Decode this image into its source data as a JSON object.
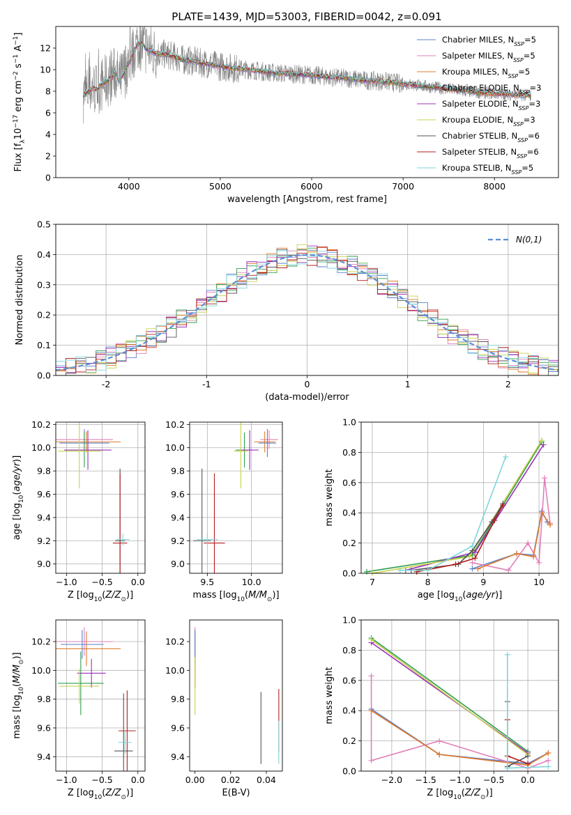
{
  "figure": {
    "title": "PLATE=1439, MJD=53003, FIBERID=0042, z=0.091"
  },
  "legend_entries": [
    {
      "key": "chabrier_miles",
      "prefix": "Chabrier MILES, N",
      "n": 5,
      "color": "#5b7fd1"
    },
    {
      "key": "salpeter_miles",
      "prefix": "Salpeter MILES, N",
      "n": 5,
      "color": "#e07fb8"
    },
    {
      "key": "kroupa_miles",
      "prefix": "Kroupa MILES, N",
      "n": 5,
      "color": "#e07a28"
    },
    {
      "key": "chabrier_elodie",
      "prefix": "Chabrier ELODIE, N",
      "n": 3,
      "color": "#2e9e4d"
    },
    {
      "key": "salpeter_elodie",
      "prefix": "Salpeter ELODIE, N",
      "n": 3,
      "color": "#9b2fb8"
    },
    {
      "key": "kroupa_elodie",
      "prefix": "Kroupa ELODIE, N",
      "n": 3,
      "color": "#c8d24a"
    },
    {
      "key": "chabrier_stelib",
      "prefix": "Chabrier STELIB, N",
      "n": 6,
      "color": "#555555"
    },
    {
      "key": "salpeter_stelib",
      "prefix": "Salpeter STELIB, N",
      "n": 6,
      "color": "#b51c1c"
    },
    {
      "key": "kroupa_stelib",
      "prefix": "Kroupa STELIB, N",
      "n": 5,
      "color": "#7dd6d9"
    }
  ],
  "chart_data": [
    {
      "id": "spectrum",
      "type": "line",
      "title": "PLATE=1439, MJD=53003, FIBERID=0042, z=0.091",
      "xlabel": "wavelength [Angstrom, rest frame]",
      "ylabel": "Flux [f_λ10^-17 erg cm^-2 s^-1 A^-1]",
      "xlim": [
        3200,
        8700
      ],
      "ylim": [
        0,
        14
      ],
      "xticks": [
        4000,
        5000,
        6000,
        7000,
        8000
      ],
      "yticks": [
        0,
        2,
        4,
        6,
        8,
        10,
        12
      ],
      "grid": false,
      "legend": "top-right",
      "observed_color": "#7f7f7f",
      "model_x": [
        3500,
        3550,
        3600,
        3650,
        3700,
        3750,
        3800,
        3850,
        3900,
        3950,
        4000,
        4050,
        4100,
        4150,
        4200,
        4300,
        4400,
        4500,
        4600,
        4700,
        4800,
        4900,
        5000,
        5200,
        5400,
        5600,
        5800,
        6000,
        6200,
        6400,
        6600,
        6800,
        7000,
        7200,
        7400,
        7600,
        7800,
        8000,
        8200,
        8400
      ],
      "model_y": [
        7.6,
        7.9,
        8.3,
        8.2,
        8.6,
        8.9,
        9.2,
        9.7,
        8.9,
        9.8,
        10.6,
        11.6,
        12.5,
        12.3,
        11.9,
        11.5,
        11.4,
        11.2,
        10.9,
        10.8,
        10.6,
        10.5,
        10.3,
        10.1,
        9.9,
        9.7,
        9.6,
        9.5,
        9.3,
        9.2,
        9.0,
        8.9,
        8.7,
        8.5,
        8.3,
        8.1,
        7.9,
        7.8,
        7.7,
        7.6
      ]
    },
    {
      "id": "residuals",
      "type": "histogram",
      "xlabel": "(data-model)/error",
      "ylabel": "Normed distribution",
      "xlim": [
        -2.5,
        2.5
      ],
      "ylim": [
        0,
        0.5
      ],
      "xticks": [
        -2,
        -1,
        0,
        1,
        2
      ],
      "yticks": [
        0.0,
        0.1,
        0.2,
        0.3,
        0.4,
        0.5
      ],
      "grid": true,
      "legend": "top-right",
      "reference_label": "N(0,1)",
      "bin_width": 0.1
    },
    {
      "id": "age_vs_Z",
      "type": "errorbar",
      "xlabel": "Z [log10(Z/Z_sun)]",
      "ylabel": "age [log10(age/yr)]",
      "xlim": [
        -1.15,
        0.1
      ],
      "ylim": [
        8.92,
        10.22
      ],
      "xticks": [
        -1.0,
        -0.5,
        0.0
      ],
      "yticks": [
        9.0,
        9.2,
        9.4,
        9.6,
        9.8,
        10.0,
        10.2
      ],
      "grid": true,
      "points": [
        {
          "series": "salpeter_miles",
          "x": -0.75,
          "y": 10.07,
          "xerr": 0.4,
          "yerr": 0.08
        },
        {
          "series": "kroupa_miles",
          "x": -0.72,
          "y": 10.05,
          "xerr": 0.48,
          "yerr": 0.09
        },
        {
          "series": "chabrier_miles",
          "x": -0.75,
          "y": 10.04,
          "xerr": 0.35,
          "yerr": 0.12
        },
        {
          "series": "chabrier_elodie",
          "x": -0.75,
          "y": 9.98,
          "xerr": 0.28,
          "yerr": 0.15
        },
        {
          "series": "salpeter_elodie",
          "x": -0.7,
          "y": 9.98,
          "xerr": 0.33,
          "yerr": 0.17
        },
        {
          "series": "kroupa_elodie",
          "x": -0.82,
          "y": 9.97,
          "xerr": 0.3,
          "yerr": 0.32
        },
        {
          "series": "chabrier_stelib",
          "x": -0.25,
          "y": 9.2,
          "xerr": 0.07,
          "yerr": 0.62
        },
        {
          "series": "salpeter_stelib",
          "x": -0.25,
          "y": 9.18,
          "xerr": 0.1,
          "yerr": 0.6
        },
        {
          "series": "kroupa_stelib",
          "x": -0.21,
          "y": 9.21,
          "xerr": 0.09,
          "yerr": 0.05
        }
      ]
    },
    {
      "id": "age_vs_mass",
      "type": "errorbar",
      "xlabel": "mass [log10(M/M_sun)]",
      "ylabel": "",
      "xlim": [
        9.3,
        10.35
      ],
      "ylim": [
        8.92,
        10.22
      ],
      "xticks": [
        9.5,
        10.0
      ],
      "yticks": [
        9.0,
        9.2,
        9.4,
        9.6,
        9.8,
        10.0,
        10.2
      ],
      "grid": true,
      "points": [
        {
          "series": "salpeter_miles",
          "x": 10.2,
          "y": 10.07,
          "xerr": 0.1,
          "yerr": 0.08
        },
        {
          "series": "kroupa_miles",
          "x": 10.15,
          "y": 10.05,
          "xerr": 0.12,
          "yerr": 0.09
        },
        {
          "series": "chabrier_miles",
          "x": 10.18,
          "y": 10.04,
          "xerr": 0.1,
          "yerr": 0.12
        },
        {
          "series": "chabrier_elodie",
          "x": 9.92,
          "y": 9.98,
          "xerr": 0.1,
          "yerr": 0.15
        },
        {
          "series": "salpeter_elodie",
          "x": 9.98,
          "y": 9.98,
          "xerr": 0.1,
          "yerr": 0.17
        },
        {
          "series": "kroupa_elodie",
          "x": 9.88,
          "y": 9.97,
          "xerr": 0.08,
          "yerr": 0.32
        },
        {
          "series": "chabrier_stelib",
          "x": 9.44,
          "y": 9.2,
          "xerr": 0.1,
          "yerr": 0.62
        },
        {
          "series": "salpeter_stelib",
          "x": 9.58,
          "y": 9.18,
          "xerr": 0.12,
          "yerr": 0.6
        },
        {
          "series": "kroupa_stelib",
          "x": 9.5,
          "y": 9.21,
          "xerr": 0.12,
          "yerr": 0.05
        }
      ]
    },
    {
      "id": "weight_vs_age",
      "type": "line",
      "xlabel": "age [log10(age/yr)]",
      "ylabel": "mass weight",
      "xlim": [
        6.8,
        10.35
      ],
      "ylim": [
        0,
        1
      ],
      "xticks": [
        7,
        8,
        9,
        10
      ],
      "yticks": [
        0.0,
        0.2,
        0.4,
        0.6,
        0.8,
        1.0
      ],
      "grid": true,
      "series": [
        {
          "series": "chabrier_miles",
          "x": [
            8.8,
            9.6,
            9.9,
            10.05,
            10.15
          ],
          "y": [
            0.03,
            0.13,
            0.12,
            0.41,
            0.34
          ]
        },
        {
          "series": "salpeter_miles",
          "x": [
            8.8,
            9.45,
            9.8,
            10.0,
            10.1,
            10.2
          ],
          "y": [
            0.07,
            0.02,
            0.2,
            0.07,
            0.63,
            0.33
          ]
        },
        {
          "series": "kroupa_miles",
          "x": [
            8.9,
            9.6,
            9.9,
            10.05,
            10.2
          ],
          "y": [
            0.03,
            0.13,
            0.11,
            0.4,
            0.32
          ]
        },
        {
          "series": "chabrier_elodie",
          "x": [
            6.9,
            8.8,
            10.05
          ],
          "y": [
            0.01,
            0.12,
            0.87
          ]
        },
        {
          "series": "salpeter_elodie",
          "x": [
            7.6,
            8.85,
            10.08
          ],
          "y": [
            0.02,
            0.14,
            0.85
          ]
        },
        {
          "series": "kroupa_elodie",
          "x": [
            7.0,
            8.75,
            10.05
          ],
          "y": [
            0.0,
            0.11,
            0.88
          ]
        },
        {
          "series": "chabrier_stelib",
          "x": [
            7.7,
            8.55,
            8.8,
            9.15,
            9.35
          ],
          "y": [
            0.02,
            0.06,
            0.15,
            0.34,
            0.46
          ]
        },
        {
          "series": "salpeter_stelib",
          "x": [
            7.8,
            8.5,
            8.85,
            9.2,
            9.35
          ],
          "y": [
            0.01,
            0.06,
            0.1,
            0.35,
            0.45
          ]
        },
        {
          "series": "kroupa_stelib",
          "x": [
            7.5,
            8.0,
            8.8,
            9.4
          ],
          "y": [
            0.02,
            0.02,
            0.18,
            0.77
          ]
        }
      ]
    },
    {
      "id": "mass_vs_Z",
      "type": "errorbar",
      "xlabel": "Z [log10(Z/Z_sun)]",
      "ylabel": "mass [log10(M/M_sun)]",
      "xlim": [
        -1.15,
        0.1
      ],
      "ylim": [
        9.3,
        10.35
      ],
      "xticks": [
        -1.0,
        -0.5,
        0.0
      ],
      "yticks": [
        9.4,
        9.6,
        9.8,
        10.0,
        10.2
      ],
      "grid": true,
      "points": [
        {
          "series": "salpeter_miles",
          "x": -0.75,
          "y": 10.2,
          "xerr": 0.4,
          "yerr": 0.1
        },
        {
          "series": "kroupa_miles",
          "x": -0.72,
          "y": 10.15,
          "xerr": 0.48,
          "yerr": 0.12
        },
        {
          "series": "chabrier_miles",
          "x": -0.78,
          "y": 10.18,
          "xerr": 0.3,
          "yerr": 0.1
        },
        {
          "series": "chabrier_elodie",
          "x": -0.8,
          "y": 9.91,
          "xerr": 0.32,
          "yerr": 0.22
        },
        {
          "series": "salpeter_elodie",
          "x": -0.65,
          "y": 9.98,
          "xerr": 0.2,
          "yerr": 0.1
        },
        {
          "series": "kroupa_elodie",
          "x": -0.82,
          "y": 9.89,
          "xerr": 0.28,
          "yerr": 0.12
        },
        {
          "series": "chabrier_stelib",
          "x": -0.2,
          "y": 9.44,
          "xerr": 0.13,
          "yerr": 0.4
        },
        {
          "series": "salpeter_stelib",
          "x": -0.15,
          "y": 9.58,
          "xerr": 0.12,
          "yerr": 0.28
        },
        {
          "series": "kroupa_stelib",
          "x": -0.18,
          "y": 9.5,
          "xerr": 0.09,
          "yerr": 0.08
        }
      ]
    },
    {
      "id": "mass_vs_ebv",
      "type": "errorbar",
      "xlabel": "E(B-V)",
      "ylabel": "",
      "xlim": [
        -0.003,
        0.049
      ],
      "ylim": [
        9.3,
        10.35
      ],
      "xticks": [
        0.0,
        0.02,
        0.04
      ],
      "yticks": [
        9.4,
        9.6,
        9.8,
        10.0,
        10.2
      ],
      "grid": false,
      "points": [
        {
          "series": "salpeter_miles",
          "x": 0.0,
          "y": 10.2,
          "xerr": 0,
          "yerr": 0.1
        },
        {
          "series": "kroupa_miles",
          "x": 0.0,
          "y": 10.15,
          "xerr": 0,
          "yerr": 0.12
        },
        {
          "series": "chabrier_miles",
          "x": 0.0,
          "y": 10.18,
          "xerr": 0,
          "yerr": 0.1
        },
        {
          "series": "salpeter_elodie",
          "x": 0.0,
          "y": 9.98,
          "xerr": 0,
          "yerr": 0.1
        },
        {
          "series": "kroupa_elodie",
          "x": 0.0,
          "y": 9.89,
          "xerr": 0,
          "yerr": 0.2
        },
        {
          "series": "chabrier_stelib",
          "x": 0.037,
          "y": 9.6,
          "xerr": 0,
          "yerr": 0.25
        },
        {
          "series": "salpeter_stelib",
          "x": 0.047,
          "y": 9.65,
          "xerr": 0,
          "yerr": 0.22
        },
        {
          "series": "kroupa_stelib",
          "x": 0.047,
          "y": 9.5,
          "xerr": 0,
          "yerr": 0.15
        }
      ]
    },
    {
      "id": "weight_vs_Z",
      "type": "line",
      "xlabel": "Z [log10(Z/Z_sun)]",
      "ylabel": "mass weight",
      "xlim": [
        -2.45,
        0.45
      ],
      "ylim": [
        0,
        1
      ],
      "xticks": [
        -2.0,
        -1.5,
        -1.0,
        -0.5,
        0.0
      ],
      "yticks": [
        0.0,
        0.2,
        0.4,
        0.6,
        0.8,
        1.0
      ],
      "grid": true,
      "series": [
        {
          "series": "chabrier_miles",
          "x": [
            -2.3,
            -1.3,
            0.0,
            0.3
          ],
          "y": [
            0.41,
            0.11,
            0.05,
            0.12
          ]
        },
        {
          "series": "salpeter_miles",
          "x": [
            -2.3,
            -2.3,
            -1.3,
            0.0,
            0.3
          ],
          "y": [
            0.63,
            0.07,
            0.2,
            0.02,
            0.07
          ]
        },
        {
          "series": "kroupa_miles",
          "x": [
            -2.3,
            -1.3,
            0.0,
            0.3
          ],
          "y": [
            0.4,
            0.11,
            0.04,
            0.12
          ]
        },
        {
          "series": "chabrier_elodie",
          "x": [
            -2.3,
            0.0
          ],
          "y": [
            0.88,
            0.13
          ]
        },
        {
          "series": "salpeter_elodie",
          "x": [
            -2.3,
            0.0
          ],
          "y": [
            0.85,
            0.12
          ]
        },
        {
          "series": "kroupa_elodie",
          "x": [
            -2.3,
            0.0
          ],
          "y": [
            0.87,
            0.11
          ]
        },
        {
          "series": "chabrier_stelib",
          "x": [
            -0.3,
            -0.3,
            0.0
          ],
          "y": [
            0.46,
            0.03,
            0.1
          ]
        },
        {
          "series": "salpeter_stelib",
          "x": [
            -0.3,
            -0.3,
            0.0
          ],
          "y": [
            0.34,
            0.1,
            0.05
          ]
        },
        {
          "series": "kroupa_stelib",
          "x": [
            -0.3,
            -0.3,
            0.3
          ],
          "y": [
            0.77,
            0.02,
            0.03
          ]
        }
      ]
    }
  ]
}
